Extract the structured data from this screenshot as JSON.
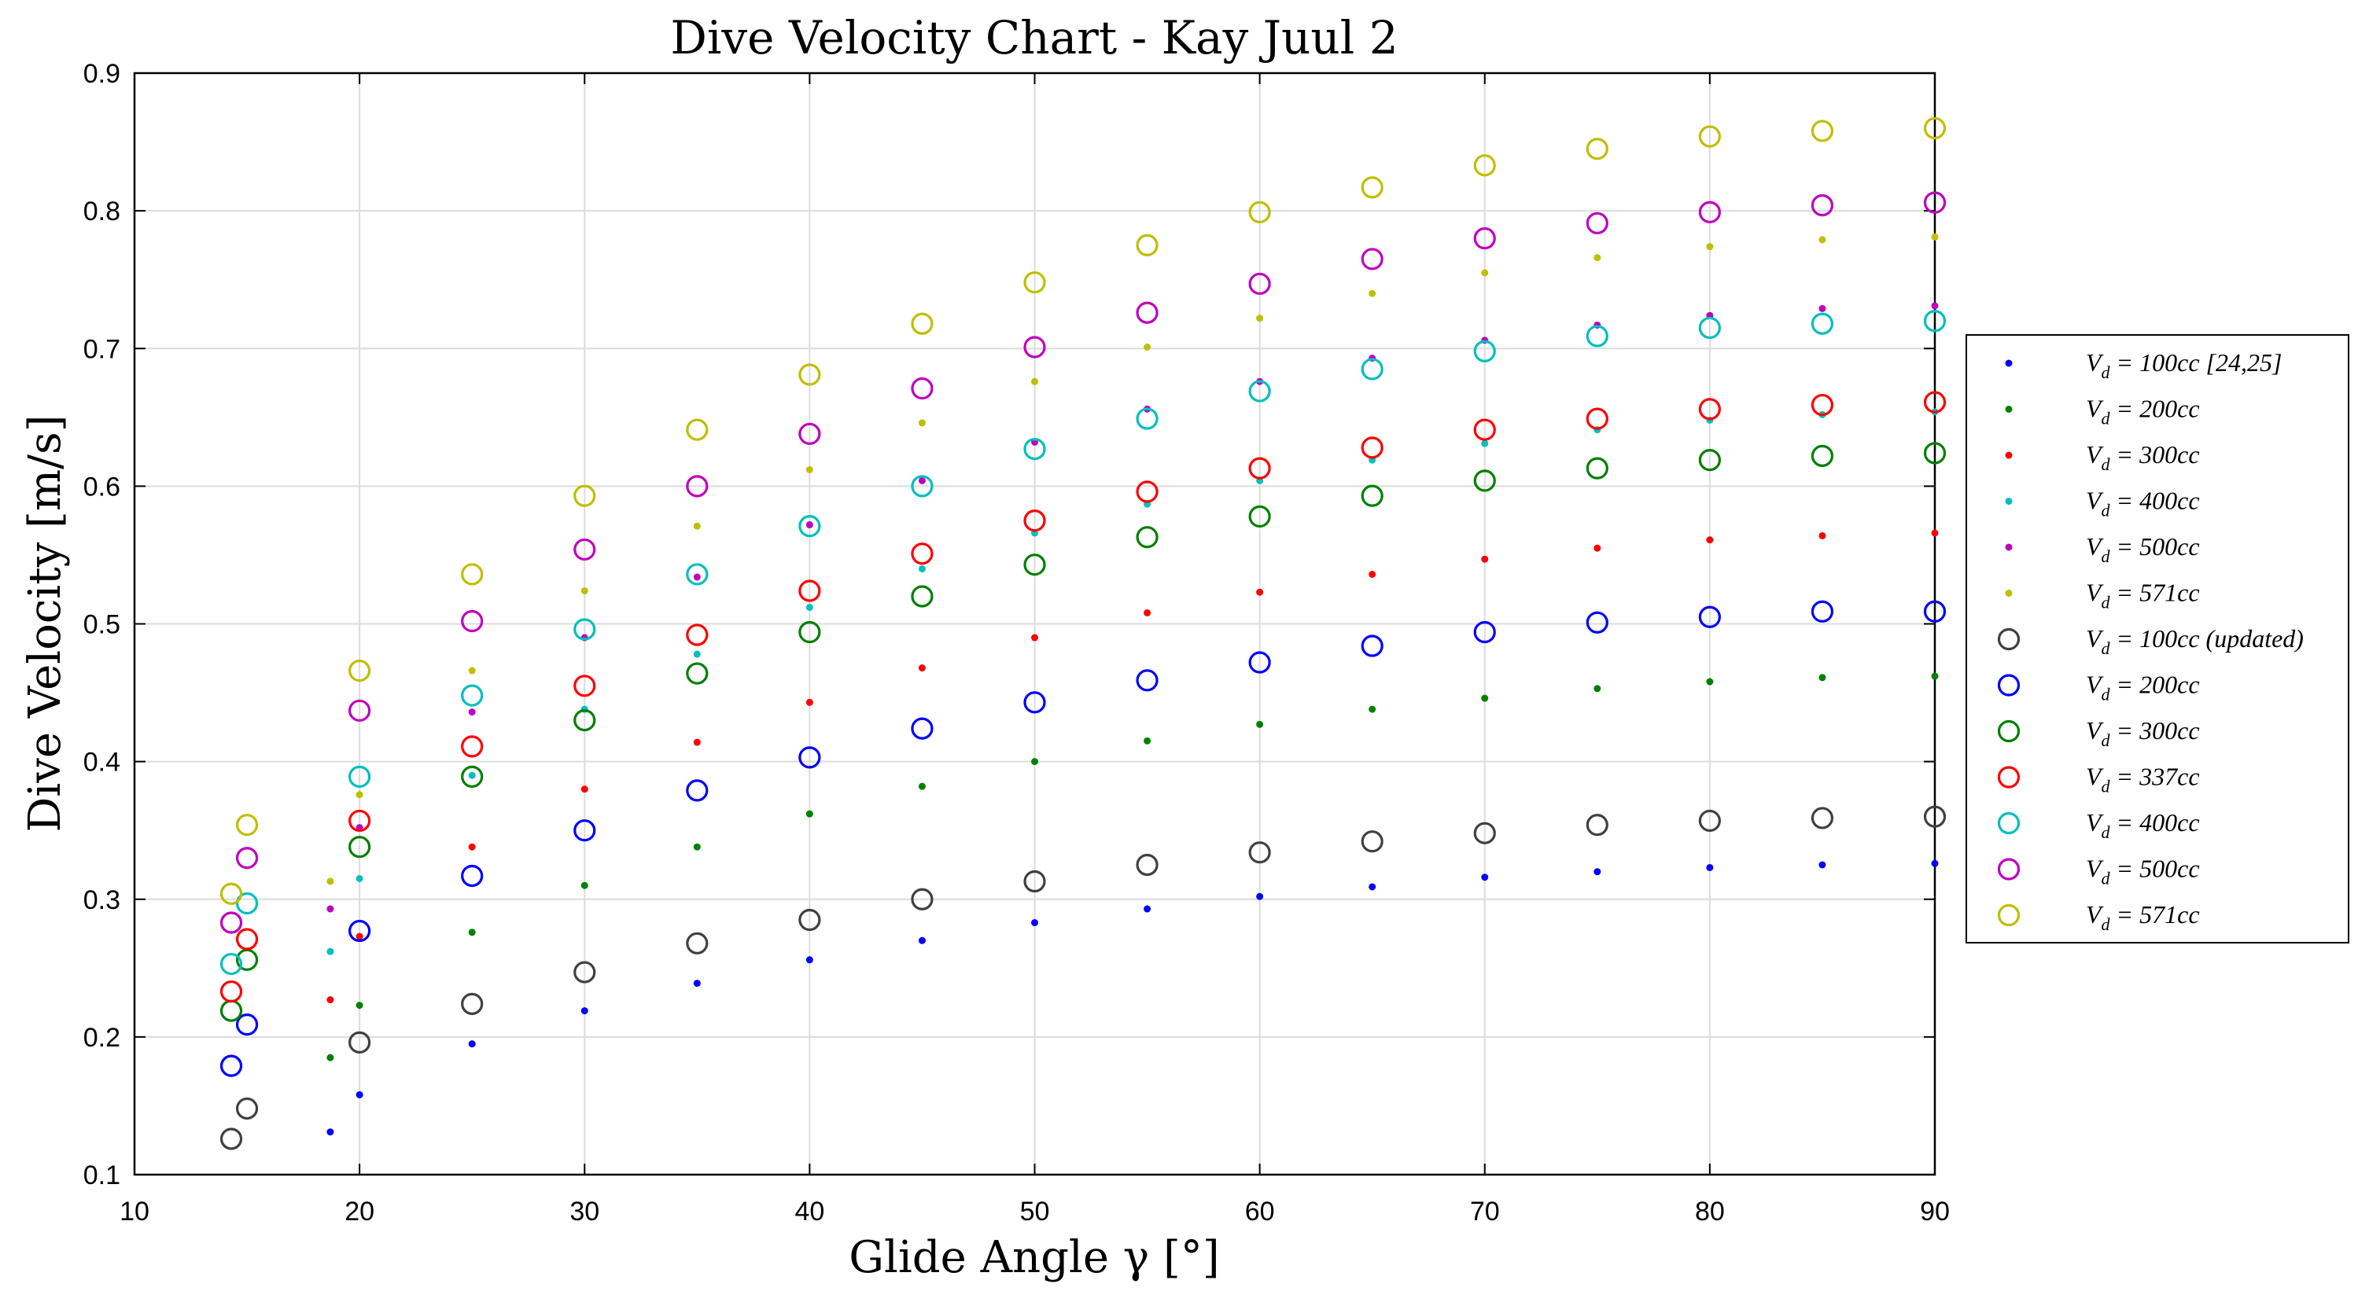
{
  "chart_data": {
    "type": "scatter",
    "title": "Dive Velocity Chart - Kay Juul 2",
    "xlabel": "Glide Angle γ [°]",
    "ylabel": "Dive Velocity [m/s]",
    "xlim": [
      10,
      90
    ],
    "ylim": [
      0.1,
      0.9
    ],
    "xticks": [
      "10",
      "20",
      "30",
      "40",
      "50",
      "60",
      "70",
      "80",
      "90"
    ],
    "yticks": [
      "0.1",
      "0.2",
      "0.3",
      "0.4",
      "0.5",
      "0.6",
      "0.7",
      "0.8",
      "0.9"
    ],
    "grid": true,
    "legend_position": "right",
    "series": [
      {
        "name": "V_d = 100cc [24,25]",
        "label_main": "V",
        "label_sub": "d",
        "label_rest": " = 100cc [24,25]",
        "marker": "dot",
        "color": "#0000ff",
        "x": [
          18.7,
          20,
          25,
          30,
          35,
          40,
          45,
          50,
          55,
          60,
          65,
          70,
          75,
          80,
          85,
          90
        ],
        "y": [
          0.131,
          0.158,
          0.195,
          0.219,
          0.239,
          0.256,
          0.27,
          0.283,
          0.293,
          0.302,
          0.309,
          0.316,
          0.32,
          0.323,
          0.325,
          0.326
        ]
      },
      {
        "name": "V_d = 200cc",
        "label_main": "V",
        "label_sub": "d",
        "label_rest": " = 200cc",
        "marker": "dot",
        "color": "#008000",
        "x": [
          18.7,
          20,
          25,
          30,
          35,
          40,
          45,
          50,
          55,
          60,
          65,
          70,
          75,
          80,
          85,
          90
        ],
        "y": [
          0.185,
          0.223,
          0.276,
          0.31,
          0.338,
          0.362,
          0.382,
          0.4,
          0.415,
          0.427,
          0.438,
          0.446,
          0.453,
          0.458,
          0.461,
          0.462
        ]
      },
      {
        "name": "V_d = 300cc",
        "label_main": "V",
        "label_sub": "d",
        "label_rest": " = 300cc",
        "marker": "dot",
        "color": "#ff0000",
        "x": [
          18.7,
          20,
          25,
          30,
          35,
          40,
          45,
          50,
          55,
          60,
          65,
          70,
          75,
          80,
          85,
          90
        ],
        "y": [
          0.227,
          0.273,
          0.338,
          0.38,
          0.414,
          0.443,
          0.468,
          0.49,
          0.508,
          0.523,
          0.536,
          0.547,
          0.555,
          0.561,
          0.564,
          0.566
        ]
      },
      {
        "name": "V_d = 400cc",
        "label_main": "V",
        "label_sub": "d",
        "label_rest": " = 400cc",
        "marker": "dot",
        "color": "#00bfbf",
        "x": [
          18.7,
          20,
          25,
          30,
          35,
          40,
          45,
          50,
          55,
          60,
          65,
          70,
          75,
          80,
          85,
          90
        ],
        "y": [
          0.262,
          0.315,
          0.39,
          0.438,
          0.478,
          0.512,
          0.54,
          0.566,
          0.587,
          0.604,
          0.619,
          0.631,
          0.641,
          0.648,
          0.652,
          0.654
        ]
      },
      {
        "name": "V_d = 500cc",
        "label_main": "V",
        "label_sub": "d",
        "label_rest": " = 500cc",
        "marker": "dot",
        "color": "#bf00bf",
        "x": [
          18.7,
          20,
          25,
          30,
          35,
          40,
          45,
          50,
          55,
          60,
          65,
          70,
          75,
          80,
          85,
          90
        ],
        "y": [
          0.293,
          0.352,
          0.436,
          0.49,
          0.534,
          0.572,
          0.604,
          0.632,
          0.656,
          0.676,
          0.693,
          0.706,
          0.717,
          0.724,
          0.729,
          0.731
        ]
      },
      {
        "name": "V_d = 571cc",
        "label_main": "V",
        "label_sub": "d",
        "label_rest": " = 571cc",
        "marker": "dot",
        "color": "#bfbf00",
        "x": [
          18.7,
          20,
          25,
          30,
          35,
          40,
          45,
          50,
          55,
          60,
          65,
          70,
          75,
          80,
          85,
          90
        ],
        "y": [
          0.313,
          0.376,
          0.466,
          0.524,
          0.571,
          0.612,
          0.646,
          0.676,
          0.701,
          0.722,
          0.74,
          0.755,
          0.766,
          0.774,
          0.779,
          0.781
        ]
      },
      {
        "name": "V_d = 100cc (updated)",
        "label_main": "V",
        "label_sub": "d",
        "label_rest": " = 100cc (updated)",
        "marker": "circle",
        "color": "#404040",
        "x": [
          14.3,
          15,
          20,
          25,
          30,
          35,
          40,
          45,
          50,
          55,
          60,
          65,
          70,
          75,
          80,
          85,
          90
        ],
        "y": [
          0.126,
          0.148,
          0.196,
          0.224,
          0.247,
          0.268,
          0.285,
          0.3,
          0.313,
          0.325,
          0.334,
          0.342,
          0.348,
          0.354,
          0.357,
          0.359,
          0.36
        ]
      },
      {
        "name": "V_d = 200cc",
        "label_main": "V",
        "label_sub": "d",
        "label_rest": " = 200cc",
        "marker": "circle",
        "color": "#0000ff",
        "x": [
          14.3,
          15,
          20,
          25,
          30,
          35,
          40,
          45,
          50,
          55,
          60,
          65,
          70,
          75,
          80,
          85,
          90
        ],
        "y": [
          0.179,
          0.209,
          0.277,
          0.317,
          0.35,
          0.379,
          0.403,
          0.424,
          0.443,
          0.459,
          0.472,
          0.484,
          0.494,
          0.501,
          0.505,
          0.509,
          0.509
        ]
      },
      {
        "name": "V_d = 300cc",
        "label_main": "V",
        "label_sub": "d",
        "label_rest": " = 300cc",
        "marker": "circle",
        "color": "#008000",
        "x": [
          14.3,
          15,
          20,
          25,
          30,
          35,
          40,
          45,
          50,
          55,
          60,
          65,
          70,
          75,
          80,
          85,
          90
        ],
        "y": [
          0.219,
          0.256,
          0.338,
          0.389,
          0.43,
          0.464,
          0.494,
          0.52,
          0.543,
          0.563,
          0.578,
          0.593,
          0.604,
          0.613,
          0.619,
          0.622,
          0.624
        ]
      },
      {
        "name": "V_d = 337cc",
        "label_main": "V",
        "label_sub": "d",
        "label_rest": " = 337cc",
        "marker": "circle",
        "color": "#ff0000",
        "x": [
          14.3,
          15,
          20,
          25,
          30,
          35,
          40,
          45,
          50,
          55,
          60,
          65,
          70,
          75,
          80,
          85,
          90
        ],
        "y": [
          0.233,
          0.271,
          0.357,
          0.411,
          0.455,
          0.492,
          0.524,
          0.551,
          0.575,
          0.596,
          0.613,
          0.628,
          0.641,
          0.649,
          0.656,
          0.659,
          0.661
        ]
      },
      {
        "name": "V_d = 400cc",
        "label_main": "V",
        "label_sub": "d",
        "label_rest": " = 400cc",
        "marker": "circle",
        "color": "#00bfbf",
        "x": [
          14.3,
          15,
          20,
          25,
          30,
          35,
          40,
          45,
          50,
          55,
          60,
          65,
          70,
          75,
          80,
          85,
          90
        ],
        "y": [
          0.253,
          0.297,
          0.389,
          0.448,
          0.496,
          0.536,
          0.571,
          0.6,
          0.627,
          0.649,
          0.669,
          0.685,
          0.698,
          0.709,
          0.715,
          0.718,
          0.72
        ]
      },
      {
        "name": "V_d = 500cc",
        "label_main": "V",
        "label_sub": "d",
        "label_rest": " = 500cc",
        "marker": "circle",
        "color": "#bf00bf",
        "x": [
          14.3,
          15,
          20,
          25,
          30,
          35,
          40,
          45,
          50,
          55,
          60,
          65,
          70,
          75,
          80,
          85,
          90
        ],
        "y": [
          0.283,
          0.33,
          0.437,
          0.502,
          0.554,
          0.6,
          0.638,
          0.671,
          0.701,
          0.726,
          0.747,
          0.765,
          0.78,
          0.791,
          0.799,
          0.804,
          0.806
        ]
      },
      {
        "name": "V_d = 571cc",
        "label_main": "V",
        "label_sub": "d",
        "label_rest": " = 571cc",
        "marker": "circle",
        "color": "#bfbf00",
        "x": [
          14.3,
          15,
          20,
          25,
          30,
          35,
          40,
          45,
          50,
          55,
          60,
          65,
          70,
          75,
          80,
          85,
          90
        ],
        "y": [
          0.304,
          0.354,
          0.466,
          0.536,
          0.593,
          0.641,
          0.681,
          0.718,
          0.748,
          0.775,
          0.799,
          0.817,
          0.833,
          0.845,
          0.854,
          0.858,
          0.86
        ]
      }
    ]
  }
}
